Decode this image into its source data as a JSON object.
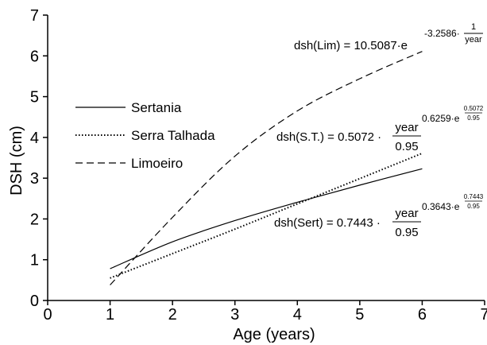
{
  "chart_data": {
    "type": "line",
    "xlabel": "Age (years)",
    "ylabel": "DSH (cm)",
    "xlim": [
      0,
      7
    ],
    "ylim": [
      0,
      7
    ],
    "xticks": [
      "0",
      "1",
      "2",
      "3",
      "4",
      "5",
      "6",
      "7"
    ],
    "yticks": [
      "0",
      "1",
      "2",
      "3",
      "4",
      "5",
      "6",
      "7"
    ],
    "grid": false,
    "legend_position": "left-center",
    "series": [
      {
        "name": "Sertania",
        "line_style": "solid",
        "color": "#000000",
        "x": [
          1,
          2,
          3,
          4,
          5,
          6
        ],
        "y": [
          0.78,
          1.44,
          1.96,
          2.41,
          2.83,
          3.23
        ]
      },
      {
        "name": "Serra Talhada",
        "line_style": "dotted",
        "color": "#000000",
        "x": [
          1,
          2,
          3,
          4,
          5,
          6
        ],
        "y": [
          0.55,
          1.15,
          1.75,
          2.37,
          2.99,
          3.61
        ]
      },
      {
        "name": "Limoeiro",
        "line_style": "dashed",
        "color": "#000000",
        "x": [
          1,
          2,
          3,
          4,
          5,
          6
        ],
        "y": [
          0.38,
          2.04,
          3.54,
          4.65,
          5.44,
          6.11
        ]
      }
    ],
    "annotations": {
      "lim": {
        "lhs": "dsh(Lim) = 10.5087·e",
        "exp": "-3.2586·",
        "frac_num": "1",
        "frac_den": "year"
      },
      "st": {
        "lhs": "dsh(S.T.) = 0.5072 ·",
        "frac_num": "year",
        "frac_den": "0.95",
        "exp": "0.6259·e",
        "exp2_num": "0.5072",
        "exp2_den": "0.95"
      },
      "sert": {
        "lhs": "dsh(Sert) = 0.7443 ·",
        "frac_num": "year",
        "frac_den": "0.95",
        "exp": "0.3643·e",
        "exp2_num": "0.7443",
        "exp2_den": "0.95"
      }
    }
  }
}
